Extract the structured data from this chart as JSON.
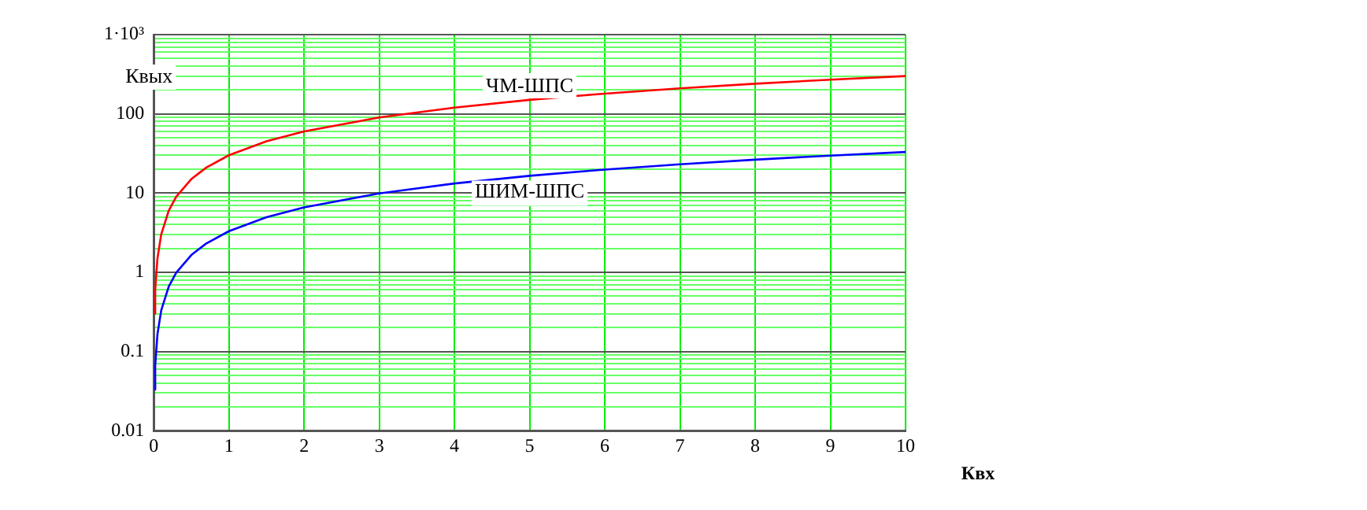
{
  "chart_data": {
    "type": "line",
    "xlabel": "Квх",
    "ylabel": "Квых",
    "log": "y",
    "grid": true,
    "legend": false,
    "marker": "none",
    "line_style": "solid",
    "x": [
      0.01,
      0.02,
      0.05,
      0.1,
      0.2,
      0.3,
      0.5,
      0.7,
      1,
      1.5,
      2,
      3,
      4,
      5,
      6,
      7,
      8,
      9,
      10
    ],
    "series": [
      {
        "name": "ЧМ-ШПС",
        "color": "#ff0000",
        "values": [
          0.3,
          0.6,
          1.5,
          3,
          6,
          9,
          15,
          21,
          30,
          45,
          60,
          90,
          120,
          150,
          180,
          210,
          240,
          270,
          300
        ]
      },
      {
        "name": "ШИМ-ШПС",
        "color": "#0000ff",
        "values": [
          0.033,
          0.066,
          0.165,
          0.33,
          0.66,
          0.99,
          1.65,
          2.31,
          3.3,
          4.95,
          6.6,
          9.9,
          13.2,
          16.5,
          19.8,
          23.1,
          26.4,
          29.7,
          33
        ]
      }
    ],
    "xlim": [
      0,
      10
    ],
    "xticks": [
      0,
      1,
      2,
      3,
      4,
      5,
      6,
      7,
      8,
      9,
      10
    ],
    "ylim": [
      0.01,
      1000
    ],
    "yticks": [
      0.01,
      {
        "value": 0.02,
        "label": null
      },
      {
        "value": 0.03,
        "label": null
      },
      {
        "value": 0.04,
        "label": null
      },
      {
        "value": 0.05,
        "label": null
      },
      {
        "value": 0.06,
        "label": null
      },
      {
        "value": 0.07,
        "label": null
      },
      {
        "value": 0.08,
        "label": null
      },
      {
        "value": 0.09,
        "label": null
      },
      0.1,
      {
        "value": 0.2,
        "label": null
      },
      {
        "value": 0.3,
        "label": null
      },
      {
        "value": 0.4,
        "label": null
      },
      {
        "value": 0.5,
        "label": null
      },
      {
        "value": 0.6,
        "label": null
      },
      {
        "value": 0.7,
        "label": null
      },
      {
        "value": 0.8,
        "label": null
      },
      {
        "value": 0.9,
        "label": null
      },
      1,
      {
        "value": 2,
        "label": null
      },
      {
        "value": 3,
        "label": null
      },
      {
        "value": 4,
        "label": null
      },
      {
        "value": 5,
        "label": null
      },
      {
        "value": 6,
        "label": null
      },
      {
        "value": 7,
        "label": null
      },
      {
        "value": 8,
        "label": null
      },
      {
        "value": 9,
        "label": null
      },
      10,
      {
        "value": 20,
        "label": null
      },
      {
        "value": 30,
        "label": null
      },
      {
        "value": 40,
        "label": null
      },
      {
        "value": 50,
        "label": null
      },
      {
        "value": 60,
        "label": null
      },
      {
        "value": 70,
        "label": null
      },
      {
        "value": 80,
        "label": null
      },
      {
        "value": 90,
        "label": null
      },
      100,
      {
        "value": 200,
        "label": null
      },
      {
        "value": 300,
        "label": null
      },
      {
        "value": 400,
        "label": null
      },
      {
        "value": 500,
        "label": null
      },
      {
        "value": 600,
        "label": null
      },
      {
        "value": 700,
        "label": null
      },
      {
        "value": 800,
        "label": null
      },
      {
        "value": 900,
        "label": null
      },
      {
        "value": 1000,
        "label": "1·10³"
      }
    ]
  }
}
